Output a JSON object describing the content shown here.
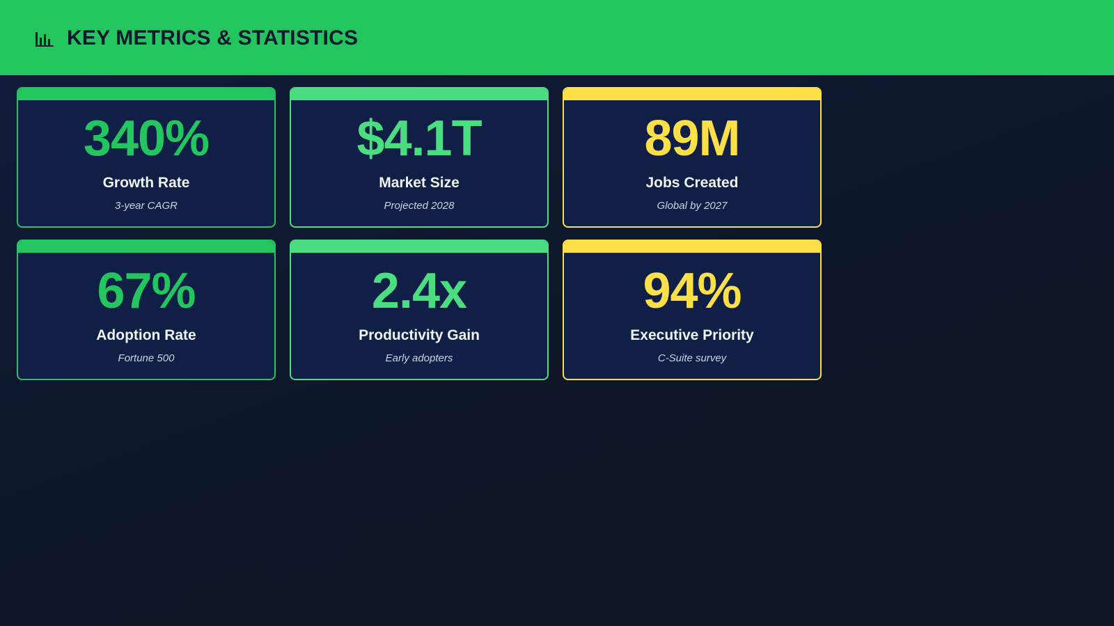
{
  "header": {
    "title": "KEY METRICS & STATISTICS"
  },
  "metrics": [
    {
      "value": "340%",
      "label": "Growth Rate",
      "note": "3-year CAGR"
    },
    {
      "value": "$4.1T",
      "label": "Market Size",
      "note": "Projected 2028"
    },
    {
      "value": "89M",
      "label": "Jobs Created",
      "note": "Global by 2027"
    },
    {
      "value": "67%",
      "label": "Adoption Rate",
      "note": "Fortune 500"
    },
    {
      "value": "2.4x",
      "label": "Productivity Gain",
      "note": "Early adopters"
    },
    {
      "value": "94%",
      "label": "Executive Priority",
      "note": "C-Suite survey"
    }
  ]
}
